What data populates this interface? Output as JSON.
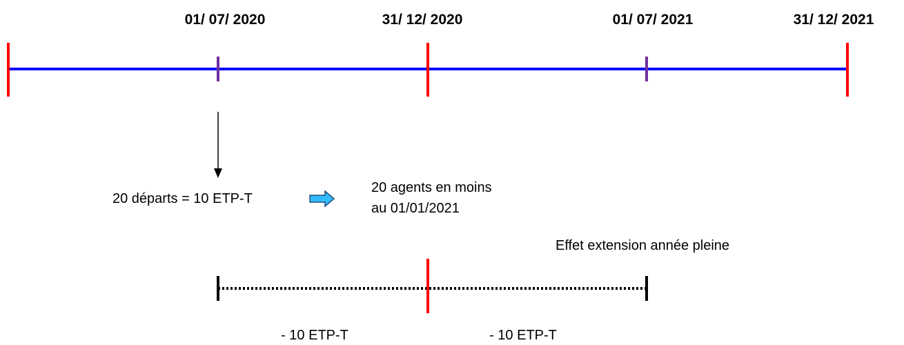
{
  "timeline": {
    "dates": [
      "01/ 07/ 2020",
      "31/ 12/ 2020",
      "01/ 07/ 2021",
      "31/ 12/ 2021"
    ]
  },
  "event": {
    "label": "20 départs = 10 ETP-T",
    "result_line1": "20 agents en moins",
    "result_line2": "au 01/01/2021"
  },
  "effect": {
    "title": "Effet extension année pleine",
    "segments": [
      "- 10 ETP-T",
      "- 10 ETP-T"
    ]
  }
}
